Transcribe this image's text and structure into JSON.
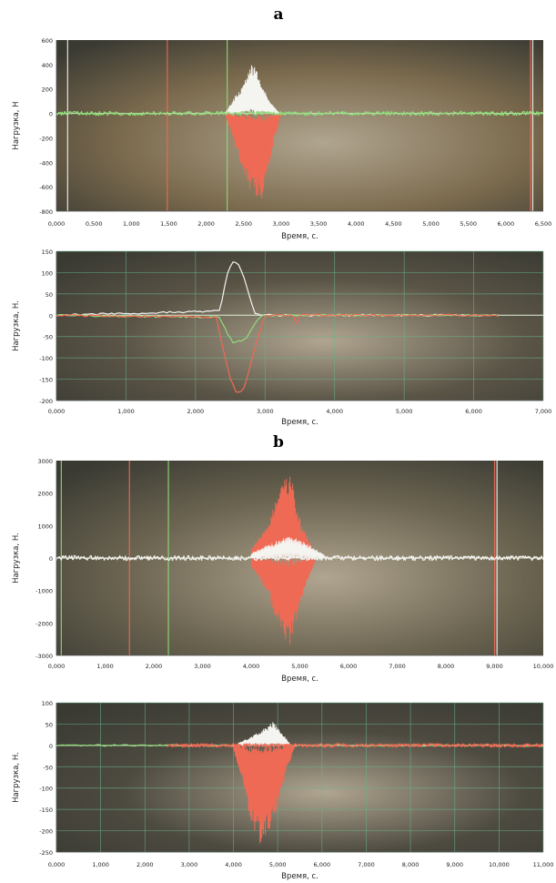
{
  "panel_letters": [
    "a",
    "b"
  ],
  "colors": {
    "white_trace": "#f4f4f0",
    "red_trace": "#ef6a55",
    "green_trace": "#8fdc7a",
    "grid": "#69b38a"
  },
  "chart_data": [
    {
      "type": "line",
      "title": "",
      "xlabel": "Время, с.",
      "ylabel": "Нагрузка, Н",
      "xlim": [
        0,
        6.5
      ],
      "ylim": [
        -800,
        600
      ],
      "xticks": [
        0,
        0.5,
        1,
        1.5,
        2,
        2.5,
        3,
        3.5,
        4,
        4.5,
        5,
        5.5,
        6,
        6.5
      ],
      "xtick_labels": [
        "0,000",
        "0,500",
        "1,000",
        "1,500",
        "2,000",
        "2,500",
        "3,000",
        "3,500",
        "4,000",
        "4,500",
        "5,000",
        "5,500",
        "6,000",
        "6,500"
      ],
      "yticks": [
        600,
        400,
        200,
        0,
        -200,
        -400,
        -600,
        -800
      ],
      "ytick_labels": [
        "600",
        "400",
        "200",
        "0",
        "-200",
        "-400",
        "-600",
        "-800"
      ],
      "grid": false,
      "series": [
        {
          "color_key": "white_trace",
          "style": "oscillation",
          "x": [
            2.25,
            2.5,
            2.6,
            2.7,
            2.85,
            2.98
          ],
          "y": [
            0,
            250,
            420,
            330,
            90,
            0
          ]
        },
        {
          "color_key": "red_trace",
          "style": "oscillation",
          "x": [
            2.25,
            2.45,
            2.6,
            2.75,
            2.9,
            3.0
          ],
          "y": [
            0,
            -400,
            -650,
            -720,
            -250,
            0
          ]
        },
        {
          "color_key": "green_trace",
          "style": "noise",
          "x": [
            0,
            6.5
          ],
          "y": [
            0,
            0
          ]
        }
      ],
      "spikes": [
        {
          "x": 0.15,
          "color_key": "white_trace"
        },
        {
          "x": 1.48,
          "color_key": "red_trace"
        },
        {
          "x": 2.28,
          "color_key": "green_trace"
        },
        {
          "x": 6.33,
          "color_key": "red_trace"
        },
        {
          "x": 6.36,
          "color_key": "white_trace"
        }
      ]
    },
    {
      "type": "line",
      "title": "",
      "xlabel": "Время, с.",
      "ylabel": "Нагрузка, Н.",
      "xlim": [
        0,
        7
      ],
      "ylim": [
        -200,
        150
      ],
      "xticks": [
        0,
        1,
        2,
        3,
        4,
        5,
        6,
        7
      ],
      "xtick_labels": [
        "0,000",
        "1,000",
        "2,000",
        "3,000",
        "4,000",
        "5,000",
        "6,000",
        "7,000"
      ],
      "yticks": [
        150,
        100,
        50,
        0,
        -50,
        -100,
        -150,
        -200
      ],
      "ytick_labels": [
        "150",
        "100",
        "50",
        "0",
        "-50",
        "-100",
        "-150",
        "-200"
      ],
      "grid": true,
      "series": [
        {
          "color_key": "white_trace",
          "style": "smooth",
          "x": [
            0,
            2.35,
            2.45,
            2.55,
            2.65,
            2.75,
            2.85,
            2.95,
            6.35
          ],
          "y": [
            0,
            10,
            95,
            130,
            110,
            60,
            5,
            0,
            0
          ]
        },
        {
          "color_key": "green_trace",
          "style": "smooth",
          "x": [
            0,
            2.35,
            2.45,
            2.55,
            2.65,
            2.75,
            2.85,
            2.95,
            6.35
          ],
          "y": [
            0,
            -5,
            -40,
            -65,
            -60,
            -50,
            -20,
            0,
            0
          ]
        },
        {
          "color_key": "red_trace",
          "style": "smooth",
          "x": [
            0,
            2.3,
            2.4,
            2.5,
            2.6,
            2.7,
            2.8,
            2.9,
            3.0,
            3.4,
            3.45,
            3.5,
            6.35
          ],
          "y": [
            0,
            -5,
            -80,
            -150,
            -185,
            -170,
            -110,
            -50,
            0,
            0,
            -20,
            0,
            0
          ]
        }
      ],
      "spikes": []
    },
    {
      "type": "line",
      "title": "",
      "xlabel": "Время, с.",
      "ylabel": "Нагрузка, Н.",
      "xlim": [
        0,
        10
      ],
      "ylim": [
        -3000,
        3000
      ],
      "xticks": [
        0,
        1,
        2,
        3,
        4,
        5,
        6,
        7,
        8,
        9,
        10
      ],
      "xtick_labels": [
        "0,000",
        "1,000",
        "2,000",
        "3,000",
        "4,000",
        "5,000",
        "6,000",
        "7,000",
        "8,000",
        "9,000",
        "10,000"
      ],
      "yticks": [
        3000,
        2000,
        1000,
        0,
        -1000,
        -2000,
        -3000
      ],
      "ytick_labels": [
        "3000",
        "2000",
        "1000",
        "0",
        "-1000",
        "-2000",
        "-3000"
      ],
      "grid": false,
      "series": [
        {
          "color_key": "red_trace",
          "style": "oscillation",
          "x": [
            4.0,
            4.3,
            4.6,
            4.8,
            5.0,
            5.3
          ],
          "y": [
            300,
            900,
            2200,
            2700,
            1200,
            200
          ]
        },
        {
          "color_key": "red_trace",
          "style": "oscillation",
          "x": [
            4.0,
            4.3,
            4.6,
            4.8,
            5.0,
            5.3
          ],
          "y": [
            -300,
            -1000,
            -2200,
            -2800,
            -1400,
            -200
          ]
        },
        {
          "color_key": "white_trace",
          "style": "oscillation",
          "x": [
            4.0,
            4.4,
            4.8,
            5.2,
            5.5
          ],
          "y": [
            150,
            450,
            700,
            400,
            100
          ]
        },
        {
          "color_key": "white_trace",
          "style": "noise",
          "x": [
            0,
            10
          ],
          "y": [
            0,
            0
          ]
        }
      ],
      "spikes": [
        {
          "x": 0.1,
          "color_key": "green_trace"
        },
        {
          "x": 1.5,
          "color_key": "red_trace"
        },
        {
          "x": 2.3,
          "color_key": "green_trace"
        },
        {
          "x": 9.0,
          "color_key": "red_trace"
        },
        {
          "x": 9.05,
          "color_key": "white_trace"
        }
      ]
    },
    {
      "type": "line",
      "title": "",
      "xlabel": "Время, с.",
      "ylabel": "Нагрузка, Н.",
      "xlim": [
        0,
        11
      ],
      "ylim": [
        -250,
        100
      ],
      "xticks": [
        0,
        1,
        2,
        3,
        4,
        5,
        6,
        7,
        8,
        9,
        10,
        11
      ],
      "xtick_labels": [
        "0,000",
        "1,000",
        "2,000",
        "3,000",
        "4,000",
        "5,000",
        "6,000",
        "7,000",
        "8,000",
        "9,000",
        "10,000",
        "11,000"
      ],
      "yticks": [
        100,
        50,
        0,
        -50,
        -100,
        -150,
        -200,
        -250
      ],
      "ytick_labels": [
        "100",
        "50",
        "0",
        "-50",
        "-100",
        "-150",
        "-200",
        "-250"
      ],
      "grid": true,
      "series": [
        {
          "color_key": "white_trace",
          "style": "oscillation",
          "x": [
            4.1,
            4.4,
            4.7,
            4.9,
            5.1,
            5.3
          ],
          "y": [
            5,
            20,
            40,
            55,
            30,
            0
          ]
        },
        {
          "color_key": "green_trace",
          "style": "smooth",
          "x": [
            0,
            4.0,
            4.2,
            4.4,
            4.6,
            4.8,
            5.0,
            5.2,
            5.4,
            11
          ],
          "y": [
            0,
            0,
            -35,
            -55,
            -70,
            -60,
            -40,
            -10,
            0,
            0
          ]
        },
        {
          "color_key": "red_trace",
          "style": "oscillation",
          "x": [
            4.0,
            4.2,
            4.4,
            4.6,
            4.8,
            5.0,
            5.2,
            5.4
          ],
          "y": [
            -10,
            -90,
            -180,
            -230,
            -200,
            -150,
            -60,
            0
          ]
        },
        {
          "color_key": "red_trace",
          "style": "noise",
          "x": [
            2.5,
            11
          ],
          "y": [
            0,
            0
          ]
        }
      ],
      "spikes": []
    }
  ]
}
